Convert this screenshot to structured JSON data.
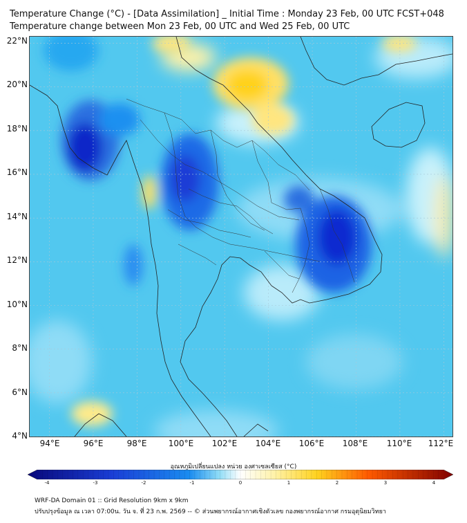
{
  "title_line1": "Temperature Change (°C) - [Data Assimilation] _ Initial Time : Monday 23 Feb, 00 UTC FCST+048",
  "title_line2": "Temperature change between Mon 23 Feb, 00 UTC and Wed 25 Feb, 00 UTC",
  "lat_labels": [
    "22°N",
    "20°N",
    "18°N",
    "16°N",
    "14°N",
    "12°N",
    "10°N",
    "8°N",
    "6°N",
    "4°N"
  ],
  "lon_labels": [
    "94°E",
    "96°E",
    "98°E",
    "100°E",
    "102°E",
    "104°E",
    "106°E",
    "108°E",
    "110°E",
    "112°E"
  ],
  "colorbar": {
    "title": "อุณหภูมิเปลี่ยนแปลง หน่วย องศาเซลเซียส (°C)",
    "ticks": [
      "-4",
      "-3",
      "-2",
      "-1",
      "0",
      "1",
      "2",
      "3",
      "4"
    ],
    "range": [
      -4,
      4
    ],
    "colors": {
      "min": "#08087a",
      "neg": "#1a8cf0",
      "zero": "#ffffff",
      "pos": "#ffd21f",
      "max": "#800000"
    }
  },
  "map": {
    "lat_range": [
      4,
      22.3
    ],
    "lon_range": [
      93.1,
      112.4
    ],
    "background_color": "#52c8ef",
    "anomalies": [
      {
        "kind": "cold",
        "lon": 95.6,
        "lat": 17.3,
        "value": -3.0
      },
      {
        "kind": "cold",
        "lon": 99.8,
        "lat": 16.2,
        "value": -2.4
      },
      {
        "kind": "cold",
        "lon": 106.7,
        "lat": 13.2,
        "value": -2.8
      },
      {
        "kind": "warm",
        "lon": 103.0,
        "lat": 20.0,
        "value": 0.8
      },
      {
        "kind": "warm",
        "lon": 97.8,
        "lat": 14.7,
        "value": 0.6
      },
      {
        "kind": "warm",
        "lon": 96.2,
        "lat": 4.7,
        "value": 0.5
      }
    ]
  },
  "footer_line1": "WRF-DA Domain 01 :: Grid Resolution 9km x 9km",
  "footer_line2": "ปรับปรุงข้อมูล ณ เวลา 07:00น. วัน จ. ที่ 23 ก.พ. 2569 -- © ส่วนพยากรณ์อากาศเชิงตัวเลข กองพยากรณ์อากาศ กรมอุตุนิยมวิทยา"
}
